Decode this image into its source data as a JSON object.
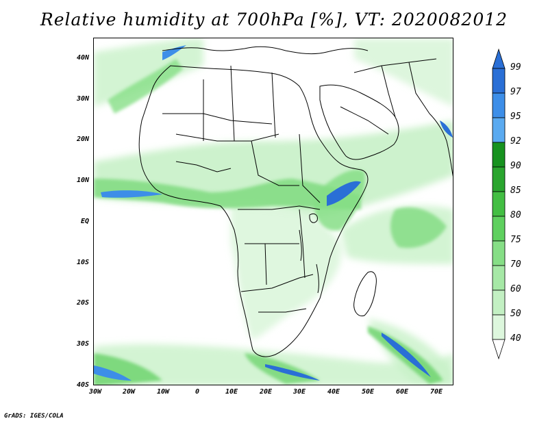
{
  "title": "Relative humidity at 700hPa [%], VT: 2020082012",
  "footer": "GrADS: IGES/COLA",
  "map": {
    "lat_ticks": [
      "40N",
      "30N",
      "20N",
      "10N",
      "EQ",
      "10S",
      "20S",
      "30S",
      "40S"
    ],
    "lon_ticks": [
      "30W",
      "20W",
      "10W",
      "0",
      "10E",
      "20E",
      "30E",
      "40E",
      "50E",
      "60E",
      "70E"
    ],
    "lat_range": [
      -40,
      45
    ],
    "lon_range": [
      -30,
      75
    ]
  },
  "colorbar": {
    "levels": [
      "99",
      "97",
      "95",
      "92",
      "90",
      "85",
      "80",
      "75",
      "70",
      "60",
      "50",
      "40"
    ],
    "colors": [
      "#2a6fd6",
      "#3d8ee8",
      "#5aaaf0",
      "#17921f",
      "#2aa52e",
      "#43be43",
      "#5fd05f",
      "#86de86",
      "#a6e8a6",
      "#c3f0c3",
      "#ddf7dd",
      "#f1fcf1"
    ]
  }
}
